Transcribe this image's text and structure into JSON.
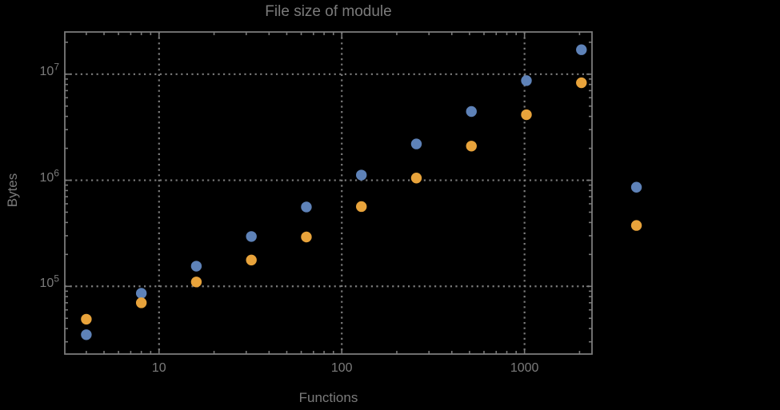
{
  "colors": {
    "background": "#000000",
    "text": "#7b7b7b",
    "frame": "#7a7a7a",
    "grid": "#7b7b7b",
    "series_blue": "#5e82b8",
    "series_orange": "#e8a33b"
  },
  "chart_data": {
    "type": "scatter",
    "title": "File size of module",
    "xlabel": "Functions",
    "ylabel": "Bytes",
    "x_scale": "log",
    "y_scale": "log",
    "grid": "dotted, at major ticks only",
    "legend": "none",
    "frame": true,
    "xlim": [
      3.05,
      2340
    ],
    "ylim": [
      23000,
      25000000
    ],
    "x_ticks": [
      {
        "value": 10,
        "label": "10"
      },
      {
        "value": 100,
        "label": "100"
      },
      {
        "value": 1000,
        "label": "1000"
      }
    ],
    "y_ticks": [
      {
        "value": 100000,
        "mantissa": "10",
        "exponent": "5"
      },
      {
        "value": 1000000,
        "mantissa": "10",
        "exponent": "6"
      },
      {
        "value": 10000000,
        "mantissa": "10",
        "exponent": "7"
      }
    ],
    "x": [
      4,
      8,
      16,
      32,
      64,
      128,
      256,
      512,
      1024,
      2048,
      4096
    ],
    "series": [
      {
        "name": "blue",
        "color": "#5e82b8",
        "values": [
          35000,
          86000,
          155000,
          295000,
          560000,
          1120000,
          2200000,
          4450000,
          8700000,
          17000000,
          860000
        ]
      },
      {
        "name": "orange",
        "color": "#e8a33b",
        "values": [
          49000,
          70000,
          110000,
          177000,
          292000,
          565000,
          1050000,
          2100000,
          4150000,
          8300000,
          375000
        ]
      }
    ],
    "note_points_outside_frame": "x=4096 pair is drawn beyond the right frame edge"
  }
}
